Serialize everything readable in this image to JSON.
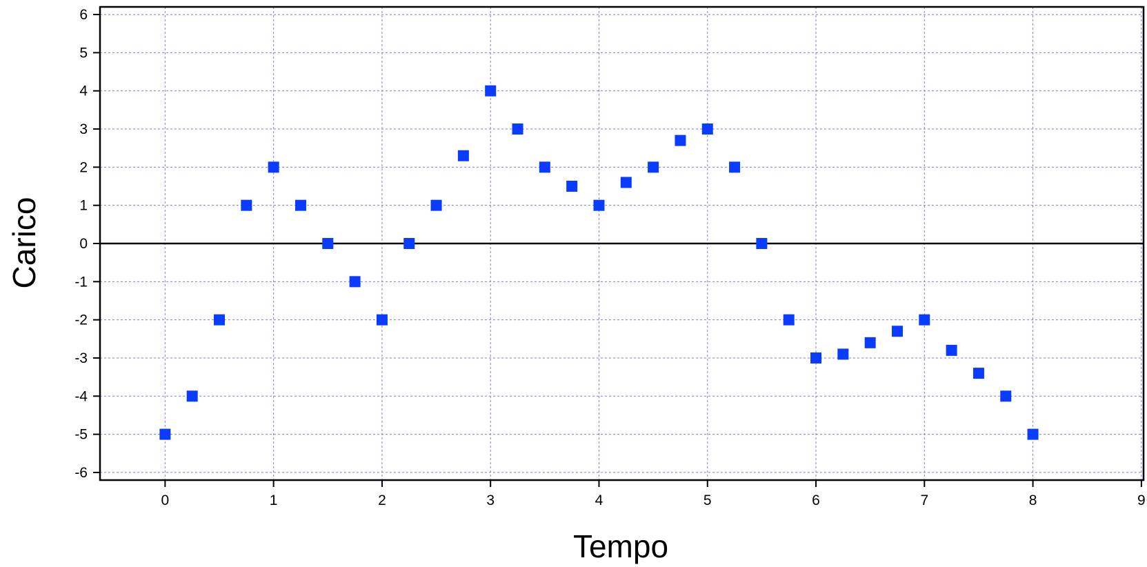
{
  "chart_data": {
    "type": "scatter",
    "title": "",
    "xlabel": "Tempo",
    "ylabel": "Carico",
    "xlim": [
      -0.6,
      9.02
    ],
    "ylim": [
      -6.2,
      6.2
    ],
    "xticks": [
      0,
      1,
      2,
      3,
      4,
      5,
      6,
      7,
      8,
      9
    ],
    "yticks": [
      6,
      5,
      4,
      3,
      2,
      1,
      0,
      -1,
      -2,
      -3,
      -4,
      -5,
      -6
    ],
    "xtick_labels": [
      "0",
      "1",
      "2",
      "3",
      "4",
      "5",
      "6",
      "7",
      "8",
      "9"
    ],
    "ytick_labels": [
      "6",
      "5",
      "4",
      "3",
      "2",
      "1",
      "0",
      "-1",
      "-2",
      "-3",
      "-4",
      "-5",
      "-6"
    ],
    "grid": true,
    "zero_line": true,
    "marker": "square",
    "colors": {
      "marker": "#0a3cff",
      "grid": "#7b7be8",
      "axis": "#000000"
    },
    "series": [
      {
        "x": [
          0,
          0.25,
          0.5,
          0.75,
          1,
          1.25,
          1.5,
          1.75,
          2,
          2.25,
          2.5,
          2.75,
          3,
          3.25,
          3.5,
          3.75,
          4,
          4.25,
          4.5,
          4.75,
          5,
          5.25,
          5.5,
          5.75,
          6,
          6.25,
          6.5,
          6.75,
          7,
          7.25,
          7.5,
          7.75,
          8
        ],
        "y": [
          -5,
          -4,
          -2,
          1,
          2,
          1,
          0,
          -1,
          -2,
          0,
          1,
          2.3,
          4,
          3,
          2,
          1.5,
          1,
          1.6,
          2,
          2.7,
          3,
          2,
          0,
          -2,
          -3,
          -2.9,
          -2.6,
          -2.3,
          -2,
          -2.8,
          -3.4,
          -4,
          -5
        ]
      }
    ]
  }
}
